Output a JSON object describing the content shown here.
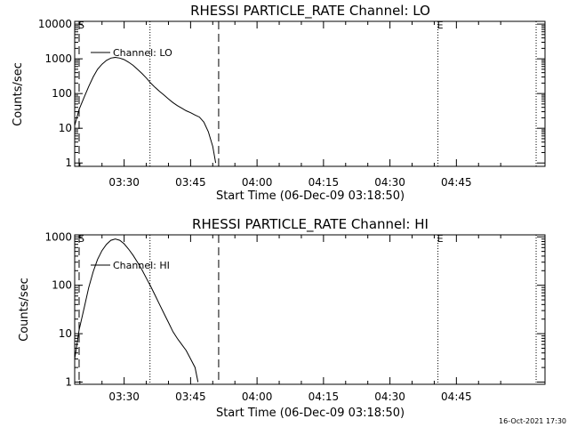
{
  "footer_timestamp": "16-Oct-2021 17:30",
  "chart_data": [
    {
      "type": "line",
      "title": "RHESSI PARTICLE_RATE Channel: LO",
      "xlabel": "Start Time (06-Dec-09 03:18:50)",
      "ylabel": "Counts/sec",
      "yscale": "log",
      "xlim": [
        "03:18:50",
        "05:05"
      ],
      "ylim": [
        0.8,
        12000
      ],
      "x_ticks": [
        "03:30",
        "03:45",
        "04:00",
        "04:15",
        "04:30",
        "04:45"
      ],
      "y_ticks": [
        "1",
        "10",
        "100",
        "1000",
        "10000"
      ],
      "y_tick_values": [
        1,
        10,
        100,
        1000,
        10000
      ],
      "legend": {
        "label": "Channel: LO",
        "placement": "top-left"
      },
      "markers": [
        {
          "label": "S",
          "time": "03:19:50",
          "style": "dashed"
        },
        {
          "label": "E",
          "time": "04:40:50",
          "style": "dotted"
        }
      ],
      "vlines": [
        {
          "time": "03:19:50",
          "style": "dashed"
        },
        {
          "time": "03:35:50",
          "style": "dotted"
        },
        {
          "time": "03:51:20",
          "style": "dashed"
        },
        {
          "time": "04:40:50",
          "style": "dotted"
        },
        {
          "time": "05:03:00",
          "style": "dotted"
        }
      ],
      "series": [
        {
          "name": "Channel: LO",
          "points": [
            [
              "03:18:50",
              12
            ],
            [
              "03:19:50",
              35
            ],
            [
              "03:21:00",
              80
            ],
            [
              "03:22:00",
              160
            ],
            [
              "03:23:00",
              300
            ],
            [
              "03:24:00",
              500
            ],
            [
              "03:25:00",
              700
            ],
            [
              "03:26:00",
              900
            ],
            [
              "03:27:00",
              1050
            ],
            [
              "03:28:00",
              1100
            ],
            [
              "03:29:00",
              1050
            ],
            [
              "03:30:00",
              950
            ],
            [
              "03:31:00",
              800
            ],
            [
              "03:32:00",
              650
            ],
            [
              "03:33:00",
              500
            ],
            [
              "03:34:00",
              380
            ],
            [
              "03:35:00",
              280
            ],
            [
              "03:36:00",
              200
            ],
            [
              "03:37:00",
              150
            ],
            [
              "03:38:00",
              115
            ],
            [
              "03:39:00",
              90
            ],
            [
              "03:40:00",
              70
            ],
            [
              "03:41:00",
              55
            ],
            [
              "03:42:00",
              45
            ],
            [
              "03:43:00",
              38
            ],
            [
              "03:44:00",
              32
            ],
            [
              "03:45:00",
              28
            ],
            [
              "03:46:00",
              24
            ],
            [
              "03:47:00",
              21
            ],
            [
              "03:48:00",
              15
            ],
            [
              "03:49:00",
              8
            ],
            [
              "03:50:00",
              3
            ],
            [
              "03:50:40",
              1
            ]
          ]
        }
      ]
    },
    {
      "type": "line",
      "title": "RHESSI PARTICLE_RATE Channel: HI",
      "xlabel": "Start Time (06-Dec-09 03:18:50)",
      "ylabel": "Counts/sec",
      "yscale": "log",
      "xlim": [
        "03:18:50",
        "05:05"
      ],
      "ylim": [
        0.9,
        1100
      ],
      "x_ticks": [
        "03:30",
        "03:45",
        "04:00",
        "04:15",
        "04:30",
        "04:45"
      ],
      "y_ticks": [
        "1",
        "10",
        "100",
        "1000"
      ],
      "y_tick_values": [
        1,
        10,
        100,
        1000
      ],
      "legend": {
        "label": "Channel: HI",
        "placement": "top-left"
      },
      "markers": [
        {
          "label": "S",
          "time": "03:19:50",
          "style": "dashed"
        },
        {
          "label": "E",
          "time": "04:40:50",
          "style": "dotted"
        }
      ],
      "vlines": [
        {
          "time": "03:19:50",
          "style": "dashed"
        },
        {
          "time": "03:35:50",
          "style": "dotted"
        },
        {
          "time": "03:51:20",
          "style": "dashed"
        },
        {
          "time": "04:40:50",
          "style": "dotted"
        },
        {
          "time": "05:03:00",
          "style": "dotted"
        }
      ],
      "series": [
        {
          "name": "Channel: HI",
          "points": [
            [
              "03:18:50",
              3
            ],
            [
              "03:19:50",
              12
            ],
            [
              "03:21:00",
              35
            ],
            [
              "03:22:00",
              90
            ],
            [
              "03:23:00",
              190
            ],
            [
              "03:24:00",
              340
            ],
            [
              "03:25:00",
              520
            ],
            [
              "03:26:00",
              700
            ],
            [
              "03:27:00",
              850
            ],
            [
              "03:28:00",
              900
            ],
            [
              "03:29:00",
              850
            ],
            [
              "03:30:00",
              720
            ],
            [
              "03:31:00",
              560
            ],
            [
              "03:32:00",
              420
            ],
            [
              "03:33:00",
              300
            ],
            [
              "03:34:00",
              210
            ],
            [
              "03:35:00",
              140
            ],
            [
              "03:36:00",
              95
            ],
            [
              "03:37:00",
              62
            ],
            [
              "03:38:00",
              40
            ],
            [
              "03:39:00",
              26
            ],
            [
              "03:40:00",
              17
            ],
            [
              "03:41:00",
              11
            ],
            [
              "03:42:00",
              8
            ],
            [
              "03:43:00",
              6
            ],
            [
              "03:44:00",
              4.5
            ],
            [
              "03:45:00",
              3
            ],
            [
              "03:46:00",
              2
            ],
            [
              "03:46:40",
              1
            ]
          ]
        }
      ]
    }
  ]
}
